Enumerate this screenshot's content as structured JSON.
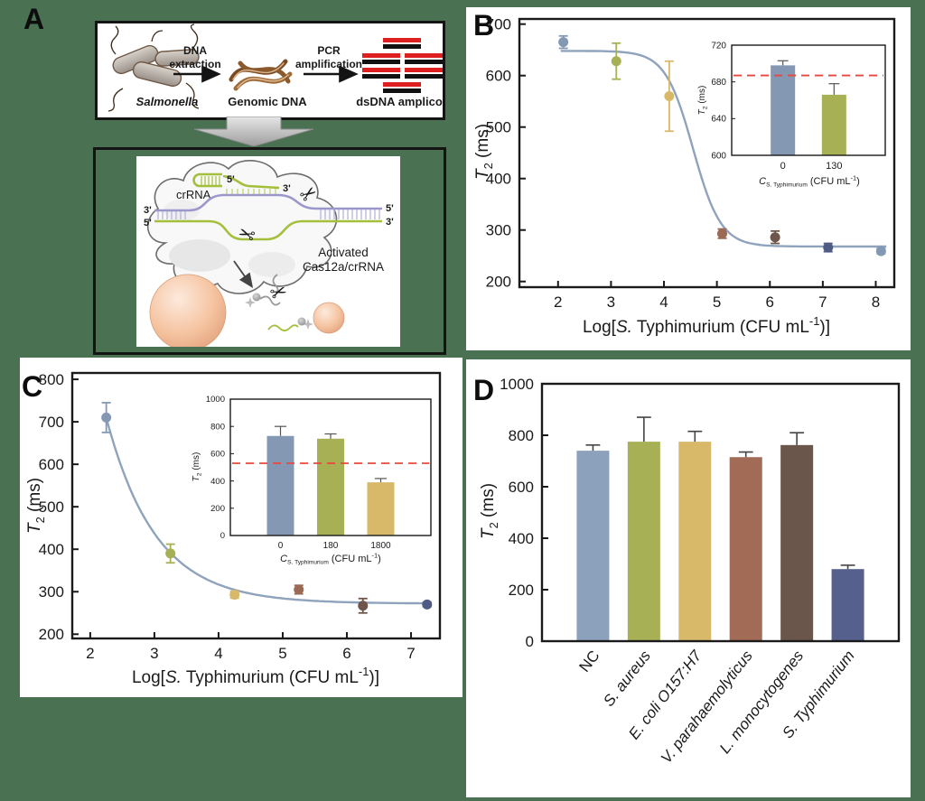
{
  "colors": {
    "background": "#4a7152",
    "panel_bg": "#ffffff",
    "curve": "#8fa3bd",
    "ref_line": "#e8473c",
    "gold_text": "#b5861b",
    "scissors_navy": "#2e4372",
    "strand_green": "#a3bf3b",
    "strand_purple": "#9b97cc"
  },
  "panelA": {
    "label": "A",
    "salmonella": "Salmonella",
    "dna_extraction_1": "DNA",
    "dna_extraction_2": "extraction",
    "genomic_dna": "Genomic DNA",
    "pcr_1": "PCR",
    "pcr_2": "amplification",
    "dsdna": "dsDNA amplicon",
    "crrna": "crRNA",
    "activated_1": "Activated",
    "activated_2": "Cas12a/crRNA",
    "end_hairpin_5": "5'",
    "end_top_3": "3'",
    "end_left_3": "3'",
    "end_left_5": "5'",
    "end_right_5": "5'",
    "end_right_3": "3'"
  },
  "panelB": {
    "label": "B"
  },
  "panelC": {
    "label": "C"
  },
  "panelD": {
    "label": "D"
  },
  "labels": {
    "t2_axis": {
      "main": "T",
      "sub": "2",
      "rest": " (ms)"
    },
    "log_axis": {
      "pre": "Log[",
      "italic": "S.",
      "mid": " Typhimurium (CFU mL",
      "sup": "-1",
      "post": ")]"
    },
    "conc_axis": {
      "italic": "C",
      "sub": "S. Typhimurium",
      "mid": " (CFU mL",
      "sup": "-1",
      "post": ")"
    }
  },
  "chart_data": [
    {
      "id": "B_main",
      "type": "scatter",
      "title": "",
      "xlabel": "Log[S. Typhimurium (CFU mL-1)]",
      "ylabel": "T2 (ms)",
      "xlim": [
        1.27,
        8.35
      ],
      "xticks": [
        2,
        3,
        4,
        5,
        6,
        7,
        8
      ],
      "ylim": [
        189,
        710
      ],
      "yticks": [
        200,
        300,
        400,
        500,
        600,
        700
      ],
      "points": [
        {
          "x": 2.1,
          "y": 665,
          "err": 12,
          "color": "#8498b4"
        },
        {
          "x": 3.1,
          "y": 628,
          "err": 35,
          "color": "#a8b055"
        },
        {
          "x": 4.1,
          "y": 560,
          "err": 68,
          "color": "#d8b96a"
        },
        {
          "x": 5.1,
          "y": 293,
          "err": 9,
          "color": "#9a6a55"
        },
        {
          "x": 6.1,
          "y": 286,
          "err": 12,
          "color": "#6f564a"
        },
        {
          "x": 7.1,
          "y": 266,
          "err": 8,
          "color": "#4f5a85"
        },
        {
          "x": 8.1,
          "y": 259,
          "err": 5,
          "color": "#8498b4"
        }
      ],
      "curve": {
        "shape": "sigmoid",
        "top": 648,
        "bottom": 268,
        "x0": 4.55,
        "k": 3.8,
        "xstart": 2.05,
        "xend": 8.2
      }
    },
    {
      "id": "B_inset",
      "type": "bar",
      "ylabel": "T2 (ms)",
      "xlabel": "C S. Typhimurium (CFU mL-1)",
      "categories": [
        "0",
        "130"
      ],
      "values": [
        698,
        666
      ],
      "errors": [
        5,
        12
      ],
      "colors": [
        "#8498b4",
        "#a8b055"
      ],
      "ylim": [
        600,
        720
      ],
      "yticks": [
        600,
        640,
        680,
        720
      ],
      "ref_line": 687
    },
    {
      "id": "C_main",
      "type": "scatter",
      "xlabel": "Log[S. Typhimurium (CFU mL-1)]",
      "ylabel": "T2 (ms)",
      "xlim": [
        1.72,
        7.45
      ],
      "xticks": [
        2,
        3,
        4,
        5,
        6,
        7
      ],
      "ylim": [
        190,
        815
      ],
      "yticks": [
        200,
        300,
        400,
        500,
        600,
        700,
        800
      ],
      "points": [
        {
          "x": 2.25,
          "y": 710,
          "err": 35,
          "color": "#8498b4"
        },
        {
          "x": 3.25,
          "y": 390,
          "err": 22,
          "color": "#a8b055"
        },
        {
          "x": 4.25,
          "y": 293,
          "err": 8,
          "color": "#d8b96a"
        },
        {
          "x": 5.25,
          "y": 305,
          "err": 10,
          "color": "#9a6a55"
        },
        {
          "x": 6.25,
          "y": 267,
          "err": 17,
          "color": "#6f564a"
        },
        {
          "x": 7.25,
          "y": 270,
          "err": 5,
          "color": "#4f5a85"
        }
      ],
      "curve": {
        "shape": "exp",
        "plateau": 272,
        "amp": 438,
        "k": 1.3,
        "xref": 2.25,
        "xstart": 2.25,
        "xend": 7.3
      }
    },
    {
      "id": "C_inset",
      "type": "bar",
      "ylabel": "T2 (ms)",
      "xlabel": "C S. Typhimurium (CFU mL-1)",
      "categories": [
        "0",
        "180",
        "1800"
      ],
      "values": [
        730,
        710,
        390
      ],
      "errors": [
        70,
        35,
        28
      ],
      "colors": [
        "#8498b4",
        "#a8b055",
        "#d8b96a"
      ],
      "ylim": [
        0,
        1000
      ],
      "yticks": [
        0,
        200,
        400,
        600,
        800,
        1000
      ],
      "ref_line": 530
    },
    {
      "id": "D",
      "type": "bar",
      "ylabel": "T2 (ms)",
      "categories": [
        "NC",
        "S. aureus",
        "E. coli O157:H7",
        "V. parahaemolyticus",
        "L. monocytogenes",
        "S. Typhimurium"
      ],
      "italic_flags": [
        false,
        true,
        true,
        true,
        true,
        true
      ],
      "values": [
        740,
        775,
        775,
        715,
        762,
        280
      ],
      "errors": [
        22,
        95,
        40,
        20,
        48,
        15
      ],
      "colors": [
        "#8ba1bc",
        "#a8b055",
        "#d8b96a",
        "#a16b56",
        "#6a564b",
        "#55608d"
      ],
      "ylim": [
        0,
        1000
      ],
      "yticks": [
        0,
        200,
        400,
        600,
        800,
        1000
      ]
    }
  ]
}
